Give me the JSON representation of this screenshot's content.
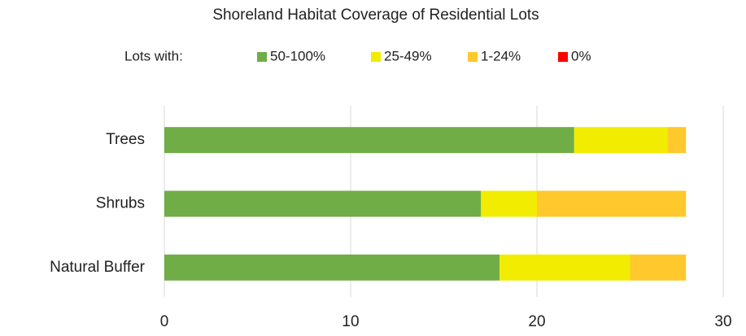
{
  "chart_data": {
    "type": "stacked_bar_horizontal",
    "title": "Shoreland Habitat Coverage of Residential Lots",
    "legend_title": "Lots with:",
    "categories": [
      "Trees",
      "Shrubs",
      "Natural Buffer"
    ],
    "series": [
      {
        "name": "50-100%",
        "color": "#70ad47",
        "values": [
          22,
          17,
          18
        ]
      },
      {
        "name": "25-49%",
        "color": "#f2ec00",
        "values": [
          5,
          3,
          7
        ]
      },
      {
        "name": "1-24%",
        "color": "#ffc82c",
        "values": [
          1,
          8,
          3
        ]
      },
      {
        "name": "0%",
        "color": "#ff0000",
        "values": [
          0,
          0,
          0
        ]
      }
    ],
    "xlim": [
      0,
      30
    ],
    "xticks": [
      0,
      10,
      20,
      30
    ],
    "grid": true,
    "legend": "top"
  }
}
